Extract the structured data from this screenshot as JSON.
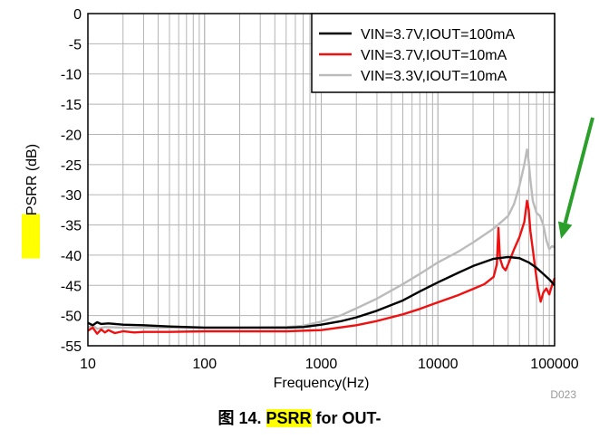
{
  "chart_data": {
    "type": "line",
    "xscale": "log",
    "xlabel": "Frequency(Hz)",
    "ylabel": "PSRR (dB)",
    "ylabel_highlighted": "PSRR",
    "ylabel_rest": " (dB)",
    "xlim": [
      10,
      100000
    ],
    "ylim": [
      -55,
      0
    ],
    "x_ticks": [
      10,
      100,
      1000,
      10000,
      100000
    ],
    "x_tick_labels": [
      "10",
      "100",
      "1000",
      "10000",
      "100000"
    ],
    "y_ticks": [
      0,
      -5,
      -10,
      -15,
      -20,
      -25,
      -30,
      -35,
      -40,
      -45,
      -50,
      -55
    ],
    "y_tick_labels": [
      "0",
      "-5",
      "-10",
      "-15",
      "-20",
      "-25",
      "-30",
      "-35",
      "-40",
      "-45",
      "-50",
      "-55"
    ],
    "grid": true,
    "legend_position": "top-right",
    "figure_id": "D023",
    "series": [
      {
        "name": "VIN=3.7V,IOUT=100mA",
        "color": "#000000",
        "points": [
          [
            10,
            -51.2
          ],
          [
            11,
            -51.6
          ],
          [
            12,
            -51.1
          ],
          [
            13,
            -51.4
          ],
          [
            15,
            -51.3
          ],
          [
            20,
            -51.5
          ],
          [
            30,
            -51.6
          ],
          [
            50,
            -51.8
          ],
          [
            100,
            -52.0
          ],
          [
            200,
            -52.0
          ],
          [
            500,
            -52.0
          ],
          [
            700,
            -51.9
          ],
          [
            1000,
            -51.5
          ],
          [
            1500,
            -50.9
          ],
          [
            2000,
            -50.3
          ],
          [
            3000,
            -49.2
          ],
          [
            5000,
            -47.5
          ],
          [
            7000,
            -46.0
          ],
          [
            10000,
            -44.5
          ],
          [
            15000,
            -42.9
          ],
          [
            20000,
            -41.8
          ],
          [
            30000,
            -40.6
          ],
          [
            40000,
            -40.3
          ],
          [
            50000,
            -40.5
          ],
          [
            60000,
            -41.2
          ],
          [
            70000,
            -42.1
          ],
          [
            80000,
            -43.1
          ],
          [
            90000,
            -44.0
          ],
          [
            100000,
            -45.0
          ]
        ]
      },
      {
        "name": "VIN=3.7V,IOUT=10mA",
        "color": "#ee1111",
        "points": [
          [
            10,
            -52.5
          ],
          [
            11,
            -52.0
          ],
          [
            12,
            -53.0
          ],
          [
            13,
            -52.3
          ],
          [
            14,
            -52.8
          ],
          [
            15,
            -52.4
          ],
          [
            17,
            -52.9
          ],
          [
            20,
            -52.6
          ],
          [
            25,
            -52.8
          ],
          [
            30,
            -52.7
          ],
          [
            50,
            -52.7
          ],
          [
            100,
            -52.6
          ],
          [
            200,
            -52.6
          ],
          [
            500,
            -52.6
          ],
          [
            1000,
            -52.4
          ],
          [
            2000,
            -51.6
          ],
          [
            3000,
            -50.9
          ],
          [
            5000,
            -49.8
          ],
          [
            7000,
            -48.9
          ],
          [
            10000,
            -47.8
          ],
          [
            15000,
            -46.6
          ],
          [
            20000,
            -45.6
          ],
          [
            25000,
            -44.8
          ],
          [
            30000,
            -43.6
          ],
          [
            32000,
            -41.5
          ],
          [
            33000,
            -35.5
          ],
          [
            34000,
            -40.5
          ],
          [
            36000,
            -42.0
          ],
          [
            38000,
            -42.5
          ],
          [
            40000,
            -41.5
          ],
          [
            45000,
            -39.0
          ],
          [
            50000,
            -37.0
          ],
          [
            55000,
            -34.5
          ],
          [
            58000,
            -31.0
          ],
          [
            60000,
            -32.5
          ],
          [
            62000,
            -36.0
          ],
          [
            65000,
            -39.0
          ],
          [
            68000,
            -42.0
          ],
          [
            72000,
            -45.5
          ],
          [
            76000,
            -47.7
          ],
          [
            80000,
            -46.2
          ],
          [
            85000,
            -45.5
          ],
          [
            90000,
            -46.5
          ],
          [
            95000,
            -45.0
          ],
          [
            100000,
            -43.8
          ]
        ]
      },
      {
        "name": "VIN=3.3V,IOUT=10mA",
        "color": "#bbbbbb",
        "points": [
          [
            10,
            -52.0
          ],
          [
            11,
            -51.6
          ],
          [
            12,
            -52.2
          ],
          [
            14,
            -51.9
          ],
          [
            20,
            -52.0
          ],
          [
            30,
            -52.0
          ],
          [
            50,
            -52.0
          ],
          [
            100,
            -52.0
          ],
          [
            200,
            -52.0
          ],
          [
            500,
            -51.9
          ],
          [
            700,
            -51.7
          ],
          [
            1000,
            -51.0
          ],
          [
            1500,
            -49.9
          ],
          [
            2000,
            -48.8
          ],
          [
            3000,
            -47.2
          ],
          [
            5000,
            -44.8
          ],
          [
            7000,
            -43.1
          ],
          [
            10000,
            -41.2
          ],
          [
            15000,
            -39.4
          ],
          [
            20000,
            -37.9
          ],
          [
            30000,
            -35.6
          ],
          [
            40000,
            -33.5
          ],
          [
            45000,
            -31.5
          ],
          [
            50000,
            -28.5
          ],
          [
            55000,
            -25.0
          ],
          [
            58000,
            -22.5
          ],
          [
            60000,
            -24.5
          ],
          [
            62000,
            -27.5
          ],
          [
            65000,
            -31.0
          ],
          [
            70000,
            -33.0
          ],
          [
            75000,
            -33.5
          ],
          [
            80000,
            -35.0
          ],
          [
            85000,
            -37.5
          ],
          [
            90000,
            -39.0
          ],
          [
            95000,
            -38.5
          ],
          [
            100000,
            -38.7
          ]
        ]
      }
    ],
    "annotations": [
      {
        "type": "arrow",
        "color": "#2aa02a",
        "points_to": [
          95000,
          -38.8
        ]
      }
    ]
  },
  "caption": {
    "prefix": "图 14. ",
    "highlight": "PSRR",
    "suffix": " for OUT-"
  },
  "colors": {
    "highlight": "#ffff00",
    "arrow": "#2aa02a",
    "grid": "#b4b4b4"
  }
}
